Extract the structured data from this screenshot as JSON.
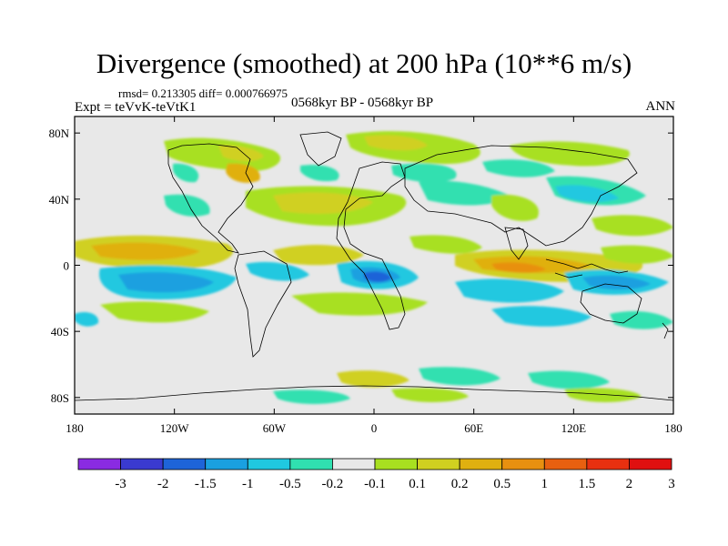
{
  "title": "Divergence (smoothed) at 200 hPa (10**6 m/s)",
  "stats": "rmsd= 0.213305   diff= 0.000766975",
  "experiment": "Expt = teVvK-teVtK1",
  "period": "0568kyr BP - 0568kyr BP",
  "season": "ANN",
  "map": {
    "lon_range": [
      -180,
      180
    ],
    "lat_range": [
      -90,
      90
    ],
    "y_ticks": [
      {
        "value": 80,
        "label": "80N"
      },
      {
        "value": 40,
        "label": "40N"
      },
      {
        "value": 0,
        "label": "0"
      },
      {
        "value": -40,
        "label": "40S"
      },
      {
        "value": -80,
        "label": "80S"
      }
    ],
    "x_ticks": [
      {
        "value": -180,
        "label": "180"
      },
      {
        "value": -120,
        "label": "120W"
      },
      {
        "value": -60,
        "label": "60W"
      },
      {
        "value": 0,
        "label": "0"
      },
      {
        "value": 60,
        "label": "60E"
      },
      {
        "value": 120,
        "label": "120E"
      },
      {
        "value": 180,
        "label": "180"
      }
    ],
    "background_color": "#e8e8e8"
  },
  "colorbar": {
    "colors": [
      "#8a2be2",
      "#3a3ad0",
      "#1e64d8",
      "#1aa0e0",
      "#20c8e0",
      "#30e0b0",
      "#e8e8e8",
      "#a8e020",
      "#d0d020",
      "#e0b010",
      "#e89010",
      "#e86010",
      "#e83010",
      "#e01010"
    ],
    "labels": [
      "-3",
      "-2",
      "-1.5",
      "-1",
      "-0.5",
      "-0.2",
      "-0.1",
      "0.1",
      "0.2",
      "0.5",
      "1",
      "1.5",
      "2",
      "3"
    ]
  }
}
